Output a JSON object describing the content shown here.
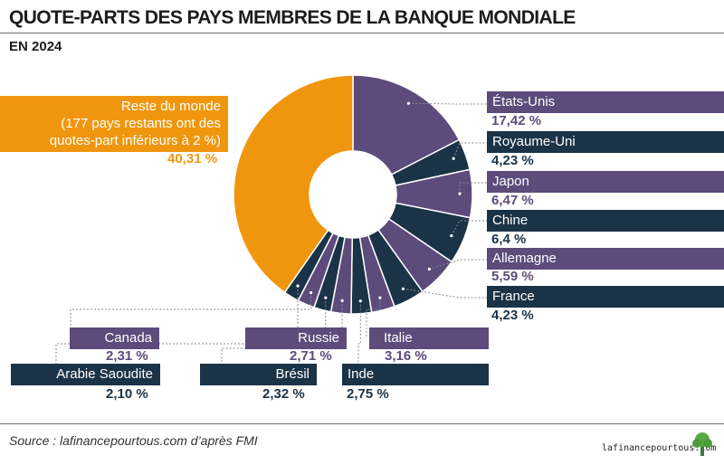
{
  "header": {
    "title": "QUOTE-PARTS DES PAYS MEMBRES DE LA BANQUE MONDIALE",
    "subtitle": "EN 2024"
  },
  "footer": {
    "source": "Source : lafinancepourtous.com d’après FMI",
    "logo_text": "lafinancepourtous.com"
  },
  "colors": {
    "purple": "#5c4b7b",
    "navy": "#1b3347",
    "orange": "#f0960e",
    "connector": "#8a8a9a"
  },
  "chart_data": {
    "type": "pie",
    "style": "donut",
    "unit": "%",
    "slices": [
      {
        "label": "États-Unis",
        "value": 17.42,
        "display": "17,42 %",
        "color": "#5c4b7b"
      },
      {
        "label": "Royaume-Uni",
        "value": 4.23,
        "display": "4,23 %",
        "color": "#1b3347"
      },
      {
        "label": "Japon",
        "value": 6.47,
        "display": "6,47 %",
        "color": "#5c4b7b"
      },
      {
        "label": "Chine",
        "value": 6.4,
        "display": "6,4 %",
        "color": "#1b3347"
      },
      {
        "label": "Allemagne",
        "value": 5.59,
        "display": "5,59 %",
        "color": "#5c4b7b"
      },
      {
        "label": "France",
        "value": 4.23,
        "display": "4,23 %",
        "color": "#1b3347"
      },
      {
        "label": "Italie",
        "value": 3.16,
        "display": "3,16 %",
        "color": "#5c4b7b"
      },
      {
        "label": "Inde",
        "value": 2.75,
        "display": "2,75 %",
        "color": "#1b3347"
      },
      {
        "label": "Russie",
        "value": 2.71,
        "display": "2,71 %",
        "color": "#5c4b7b"
      },
      {
        "label": "Brésil",
        "value": 2.32,
        "display": "2,32 %",
        "color": "#1b3347"
      },
      {
        "label": "Canada",
        "value": 2.31,
        "display": "2,31 %",
        "color": "#5c4b7b"
      },
      {
        "label": "Arabie Saoudite",
        "value": 2.1,
        "display": "2,10 %",
        "color": "#1b3347"
      },
      {
        "label": "Reste du monde",
        "value": 40.31,
        "display": "40,31 %",
        "color": "#f0960e"
      }
    ],
    "rest_note": [
      "Reste du monde",
      "(177 pays restants ont des",
      "quotes-part inférieurs à 2 %)"
    ]
  }
}
